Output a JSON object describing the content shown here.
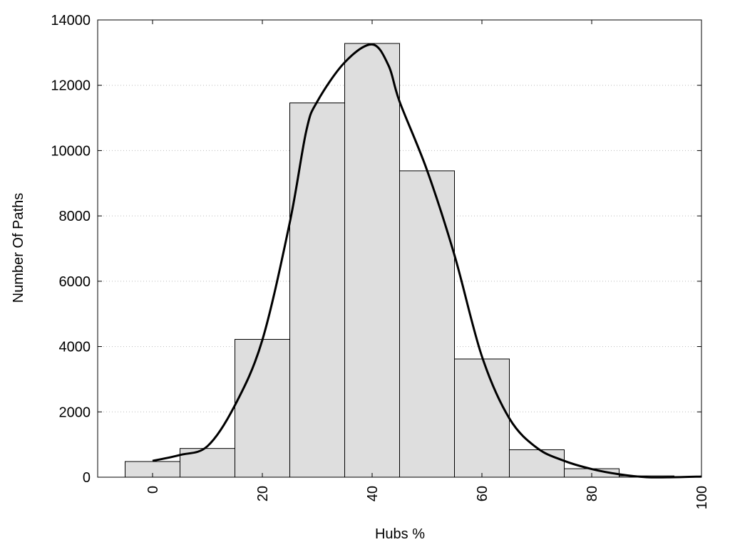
{
  "chart_data": {
    "type": "bar",
    "xlabel": "Hubs %",
    "ylabel": "Number Of Paths",
    "xlim": [
      -10,
      100
    ],
    "ylim": [
      0,
      14000
    ],
    "x_ticks": [
      0,
      20,
      40,
      60,
      80,
      100
    ],
    "y_ticks": [
      0,
      2000,
      4000,
      6000,
      8000,
      10000,
      12000,
      14000
    ],
    "grid": "horizontal-dotted",
    "bin_width": 10,
    "bars": [
      {
        "x": 0,
        "value": 480
      },
      {
        "x": 10,
        "value": 880
      },
      {
        "x": 20,
        "value": 4220
      },
      {
        "x": 30,
        "value": 11460
      },
      {
        "x": 40,
        "value": 13280
      },
      {
        "x": 50,
        "value": 9380
      },
      {
        "x": 60,
        "value": 3620
      },
      {
        "x": 70,
        "value": 840
      },
      {
        "x": 80,
        "value": 260
      },
      {
        "x": 90,
        "value": 40
      }
    ],
    "curve": [
      {
        "x": 0,
        "y": 500
      },
      {
        "x": 5,
        "y": 680
      },
      {
        "x": 10,
        "y": 950
      },
      {
        "x": 15,
        "y": 2200
      },
      {
        "x": 20,
        "y": 4200
      },
      {
        "x": 25,
        "y": 7800
      },
      {
        "x": 28,
        "y": 10600
      },
      {
        "x": 30,
        "y": 11500
      },
      {
        "x": 35,
        "y": 12700
      },
      {
        "x": 40,
        "y": 13250
      },
      {
        "x": 43,
        "y": 12600
      },
      {
        "x": 45,
        "y": 11500
      },
      {
        "x": 50,
        "y": 9400
      },
      {
        "x": 55,
        "y": 6800
      },
      {
        "x": 60,
        "y": 3700
      },
      {
        "x": 65,
        "y": 1800
      },
      {
        "x": 70,
        "y": 900
      },
      {
        "x": 75,
        "y": 500
      },
      {
        "x": 80,
        "y": 250
      },
      {
        "x": 85,
        "y": 90
      },
      {
        "x": 90,
        "y": 0
      },
      {
        "x": 95,
        "y": 0
      },
      {
        "x": 100,
        "y": 20
      }
    ],
    "colors": {
      "bar_fill": "#dedede",
      "bar_stroke": "#000000",
      "curve": "#000000",
      "grid": "#bbbbbb"
    }
  }
}
